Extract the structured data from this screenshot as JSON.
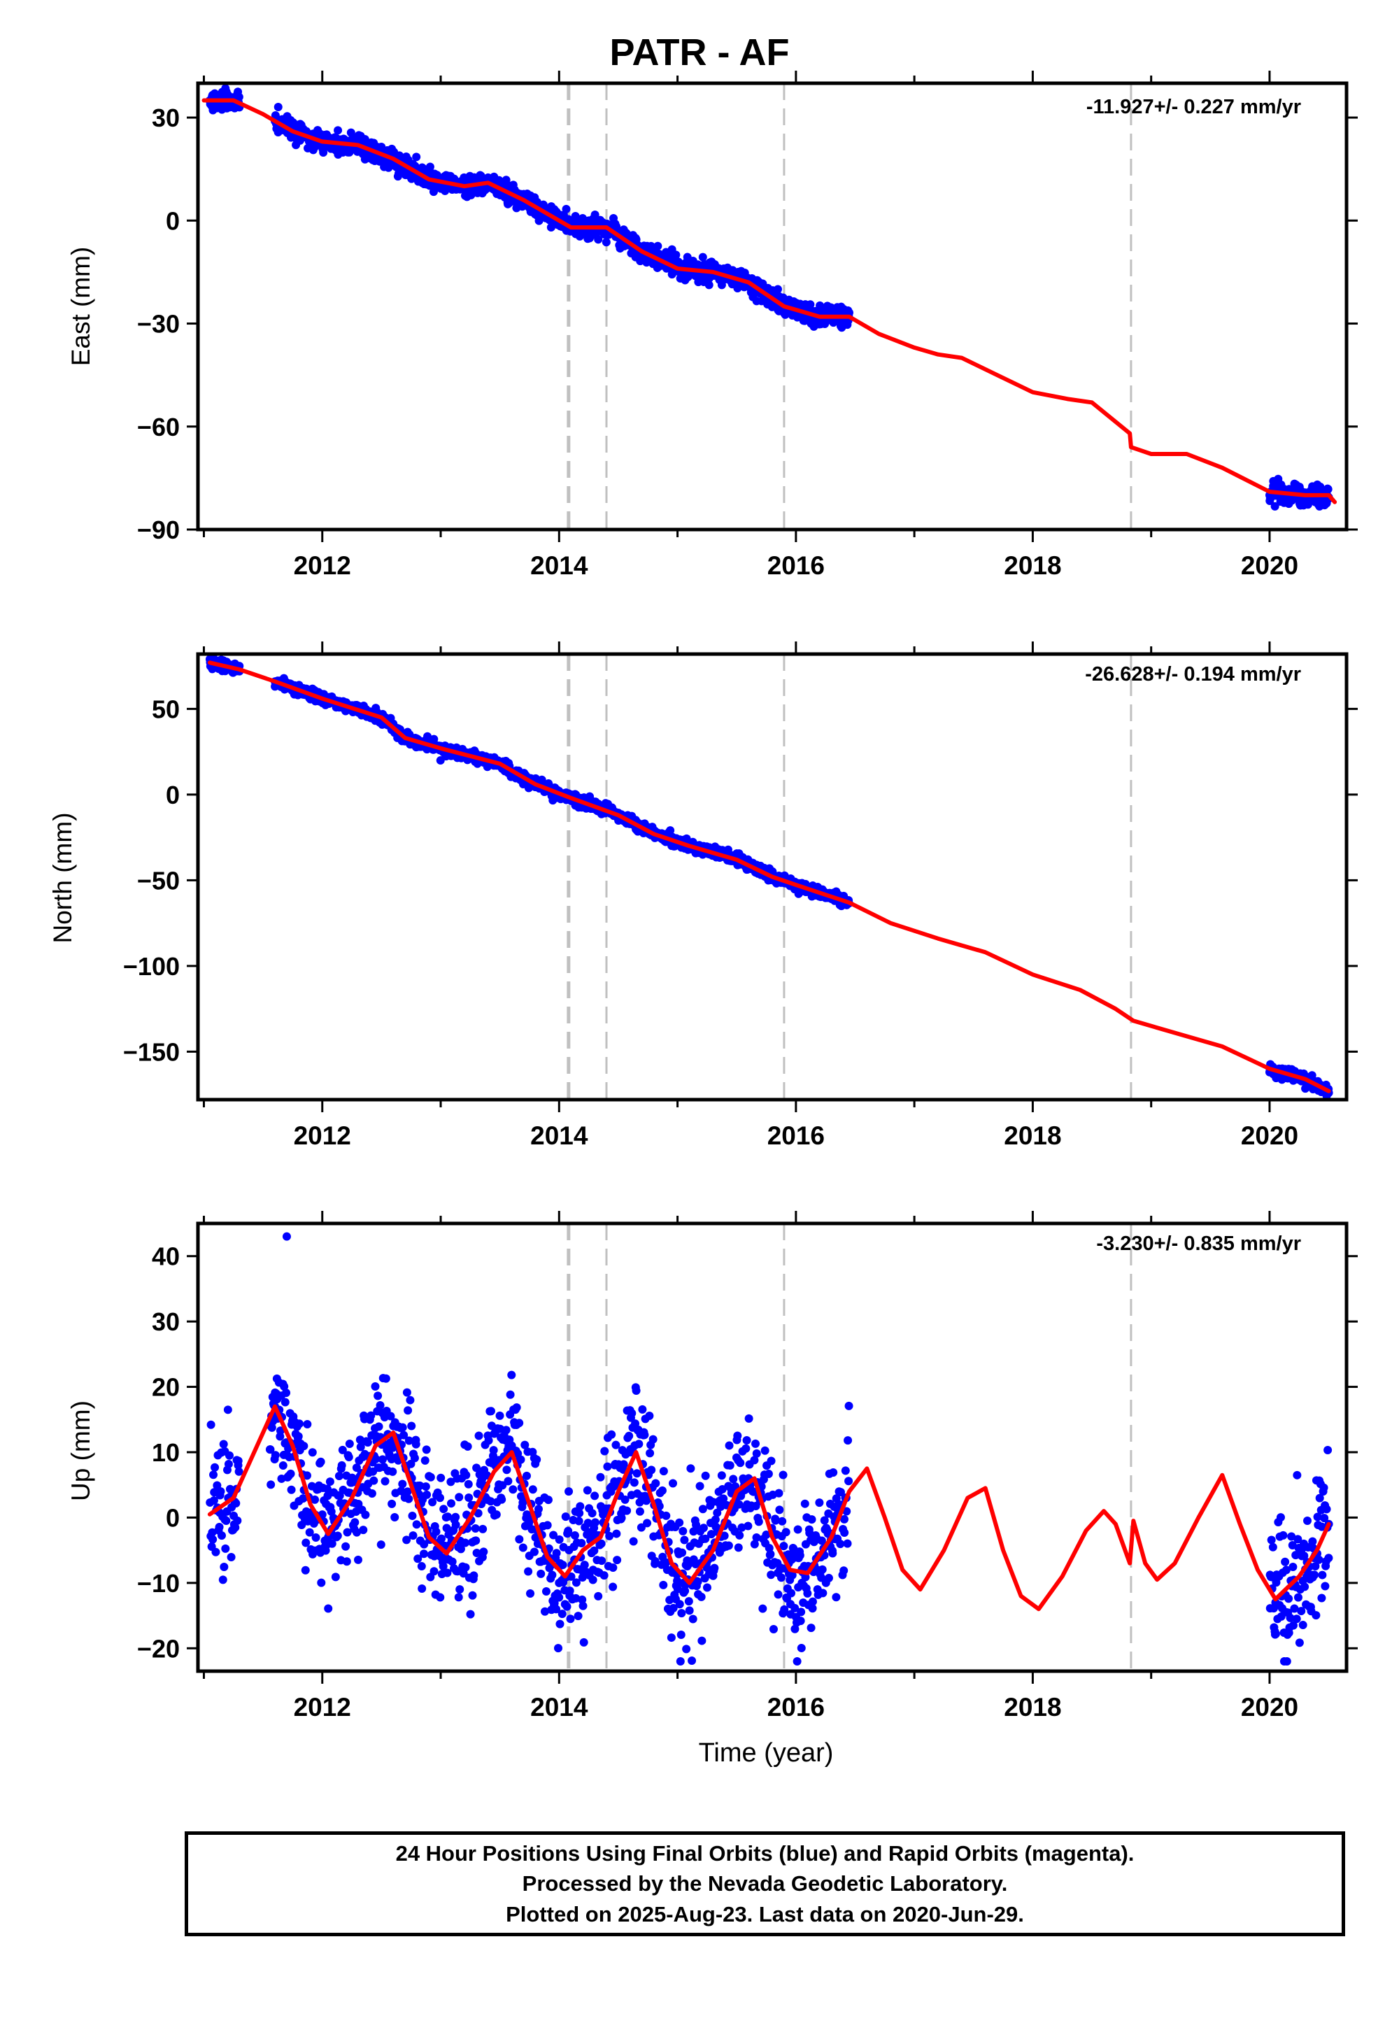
{
  "title": "PATR - AF",
  "xaxis": {
    "label": "Time (year)",
    "ticks": [
      "2012",
      "2014",
      "2016",
      "2018",
      "2020"
    ]
  },
  "footer": {
    "line1": "24 Hour Positions Using Final Orbits (blue) and Rapid Orbits (magenta).",
    "line2": "Processed by the Nevada Geodetic Laboratory.",
    "line3": "Plotted on 2025-Aug-23. Last data on 2020-Jun-29."
  },
  "colors": {
    "observations": "#0000ff",
    "model_fit": "#ff0000",
    "event_lines": "#c0c0c0"
  },
  "chart_data": [
    {
      "type": "scatter",
      "id": "east",
      "ylabel": "East (mm)",
      "rate": "-11.927+/- 0.227 mm/yr",
      "xlim": [
        2010.95,
        2020.65
      ],
      "ylim": [
        -90,
        40
      ],
      "yticks": [
        30,
        0,
        -30,
        -60,
        -90
      ],
      "ytick_labels": [
        "30",
        "0",
        "−30",
        "−60",
        "−90"
      ],
      "events": [
        2014.08,
        2014.4,
        2015.9,
        2018.83
      ],
      "observation_ranges": [
        [
          2011.05,
          2011.3
        ],
        [
          2011.6,
          2016.45
        ],
        [
          2020.0,
          2020.5
        ]
      ],
      "obs_samples": [
        [
          2011.05,
          35
        ],
        [
          2011.3,
          33
        ],
        [
          2011.6,
          29
        ],
        [
          2012.0,
          23
        ],
        [
          2012.3,
          22
        ],
        [
          2012.8,
          14
        ],
        [
          2013.2,
          11
        ],
        [
          2013.8,
          3
        ],
        [
          2014.1,
          -2
        ],
        [
          2014.5,
          -5
        ],
        [
          2015.0,
          -14
        ],
        [
          2015.5,
          -17
        ],
        [
          2016.0,
          -27
        ],
        [
          2016.4,
          -28
        ],
        [
          2020.0,
          -80
        ],
        [
          2020.5,
          -81
        ]
      ],
      "fit": [
        [
          2011.0,
          35
        ],
        [
          2011.25,
          35
        ],
        [
          2011.5,
          31
        ],
        [
          2011.75,
          26
        ],
        [
          2012.0,
          23
        ],
        [
          2012.3,
          22
        ],
        [
          2012.6,
          18
        ],
        [
          2012.9,
          12
        ],
        [
          2013.2,
          10
        ],
        [
          2013.4,
          11
        ],
        [
          2013.7,
          6
        ],
        [
          2014.0,
          0
        ],
        [
          2014.1,
          -2
        ],
        [
          2014.4,
          -2
        ],
        [
          2014.7,
          -9
        ],
        [
          2015.0,
          -14
        ],
        [
          2015.3,
          -15
        ],
        [
          2015.6,
          -18
        ],
        [
          2015.9,
          -25
        ],
        [
          2016.2,
          -28
        ],
        [
          2016.45,
          -28
        ],
        [
          2016.7,
          -33
        ],
        [
          2017.0,
          -37
        ],
        [
          2017.2,
          -39
        ],
        [
          2017.4,
          -40
        ],
        [
          2017.7,
          -45
        ],
        [
          2018.0,
          -50
        ],
        [
          2018.3,
          -52
        ],
        [
          2018.5,
          -53
        ],
        [
          2018.82,
          -62
        ],
        [
          2018.83,
          -66
        ],
        [
          2019.0,
          -68
        ],
        [
          2019.3,
          -68
        ],
        [
          2019.6,
          -72
        ],
        [
          2020.0,
          -79
        ],
        [
          2020.3,
          -80
        ],
        [
          2020.5,
          -80
        ],
        [
          2020.55,
          -82
        ]
      ]
    },
    {
      "type": "scatter",
      "id": "north",
      "ylabel": "North (mm)",
      "rate": "-26.628+/- 0.194 mm/yr",
      "xlim": [
        2010.95,
        2020.65
      ],
      "ylim": [
        -178,
        82
      ],
      "yticks": [
        50,
        0,
        -50,
        -100,
        -150
      ],
      "ytick_labels": [
        "50",
        "0",
        "−50",
        "−100",
        "−150"
      ],
      "events": [
        2014.08,
        2014.4,
        2015.9,
        2018.83
      ],
      "observation_ranges": [
        [
          2011.05,
          2011.3
        ],
        [
          2011.6,
          2016.45
        ],
        [
          2020.0,
          2020.5
        ]
      ],
      "obs_samples": [
        [
          2011.05,
          79
        ],
        [
          2011.3,
          75
        ],
        [
          2011.6,
          66
        ],
        [
          2012.0,
          56
        ],
        [
          2012.5,
          44
        ],
        [
          2013.0,
          28
        ],
        [
          2013.5,
          17
        ],
        [
          2014.0,
          2
        ],
        [
          2014.5,
          -12
        ],
        [
          2015.0,
          -27
        ],
        [
          2015.5,
          -38
        ],
        [
          2016.0,
          -52
        ],
        [
          2016.4,
          -62
        ],
        [
          2020.0,
          -162
        ],
        [
          2020.5,
          -174
        ]
      ],
      "fit": [
        [
          2011.05,
          77
        ],
        [
          2011.3,
          73
        ],
        [
          2011.6,
          66
        ],
        [
          2012.0,
          56
        ],
        [
          2012.5,
          45
        ],
        [
          2012.7,
          33
        ],
        [
          2013.0,
          27
        ],
        [
          2013.5,
          18
        ],
        [
          2013.8,
          6
        ],
        [
          2014.1,
          -2
        ],
        [
          2014.5,
          -12
        ],
        [
          2014.8,
          -23
        ],
        [
          2015.1,
          -30
        ],
        [
          2015.5,
          -38
        ],
        [
          2015.8,
          -48
        ],
        [
          2016.1,
          -55
        ],
        [
          2016.45,
          -63
        ],
        [
          2016.8,
          -75
        ],
        [
          2017.2,
          -84
        ],
        [
          2017.6,
          -92
        ],
        [
          2018.0,
          -105
        ],
        [
          2018.4,
          -114
        ],
        [
          2018.7,
          -125
        ],
        [
          2018.85,
          -132
        ],
        [
          2019.2,
          -139
        ],
        [
          2019.6,
          -147
        ],
        [
          2020.0,
          -160
        ],
        [
          2020.3,
          -166
        ],
        [
          2020.5,
          -173
        ]
      ]
    },
    {
      "type": "scatter",
      "id": "up",
      "ylabel": "Up (mm)",
      "rate": "-3.230+/- 0.835 mm/yr",
      "xlim": [
        2010.95,
        2020.65
      ],
      "ylim": [
        -23.5,
        45
      ],
      "yticks": [
        40,
        30,
        20,
        10,
        0,
        -10,
        -20
      ],
      "ytick_labels": [
        "40",
        "30",
        "20",
        "10",
        "0",
        "−10",
        "−20"
      ],
      "events": [
        2014.08,
        2014.4,
        2015.9,
        2018.83
      ],
      "observation_ranges": [
        [
          2011.05,
          2011.3
        ],
        [
          2011.55,
          2016.45
        ],
        [
          2020.0,
          2020.5
        ]
      ],
      "obs_samples": [
        [
          2011.6,
          17
        ],
        [
          2011.7,
          43
        ],
        [
          2012.05,
          -3
        ],
        [
          2012.6,
          14
        ],
        [
          2013.0,
          -6
        ],
        [
          2013.6,
          11
        ],
        [
          2014.0,
          -10
        ],
        [
          2014.6,
          10
        ],
        [
          2015.05,
          -10
        ],
        [
          2015.6,
          6
        ],
        [
          2016.05,
          -10
        ],
        [
          2020.05,
          -13
        ],
        [
          2020.5,
          -1
        ]
      ],
      "fit": [
        [
          2011.05,
          0.5
        ],
        [
          2011.25,
          3
        ],
        [
          2011.45,
          11
        ],
        [
          2011.6,
          17
        ],
        [
          2011.75,
          11
        ],
        [
          2011.9,
          2
        ],
        [
          2012.05,
          -2.5
        ],
        [
          2012.25,
          3
        ],
        [
          2012.45,
          11
        ],
        [
          2012.6,
          13
        ],
        [
          2012.75,
          5
        ],
        [
          2012.9,
          -3
        ],
        [
          2013.05,
          -5.5
        ],
        [
          2013.25,
          0
        ],
        [
          2013.45,
          7
        ],
        [
          2013.6,
          10
        ],
        [
          2013.75,
          2
        ],
        [
          2013.9,
          -6
        ],
        [
          2014.05,
          -9
        ],
        [
          2014.2,
          -5
        ],
        [
          2014.35,
          -3
        ],
        [
          2014.5,
          4
        ],
        [
          2014.65,
          10
        ],
        [
          2014.8,
          2
        ],
        [
          2014.95,
          -7
        ],
        [
          2015.1,
          -10
        ],
        [
          2015.3,
          -5
        ],
        [
          2015.5,
          4
        ],
        [
          2015.65,
          6
        ],
        [
          2015.8,
          -3
        ],
        [
          2015.95,
          -8
        ],
        [
          2016.1,
          -8.5
        ],
        [
          2016.3,
          -3
        ],
        [
          2016.45,
          4
        ],
        [
          2016.6,
          7.5
        ],
        [
          2016.75,
          0
        ],
        [
          2016.9,
          -8
        ],
        [
          2017.05,
          -11
        ],
        [
          2017.25,
          -5
        ],
        [
          2017.45,
          3
        ],
        [
          2017.6,
          4.5
        ],
        [
          2017.75,
          -5
        ],
        [
          2017.9,
          -12
        ],
        [
          2018.05,
          -14
        ],
        [
          2018.25,
          -9
        ],
        [
          2018.45,
          -2
        ],
        [
          2018.6,
          1
        ],
        [
          2018.7,
          -1
        ],
        [
          2018.82,
          -7
        ],
        [
          2018.85,
          -0.5
        ],
        [
          2018.95,
          -7
        ],
        [
          2019.05,
          -9.5
        ],
        [
          2019.2,
          -7
        ],
        [
          2019.4,
          0
        ],
        [
          2019.6,
          6.5
        ],
        [
          2019.75,
          -1
        ],
        [
          2019.9,
          -8
        ],
        [
          2020.05,
          -12.5
        ],
        [
          2020.25,
          -9
        ],
        [
          2020.4,
          -5
        ],
        [
          2020.5,
          -1
        ]
      ]
    }
  ]
}
